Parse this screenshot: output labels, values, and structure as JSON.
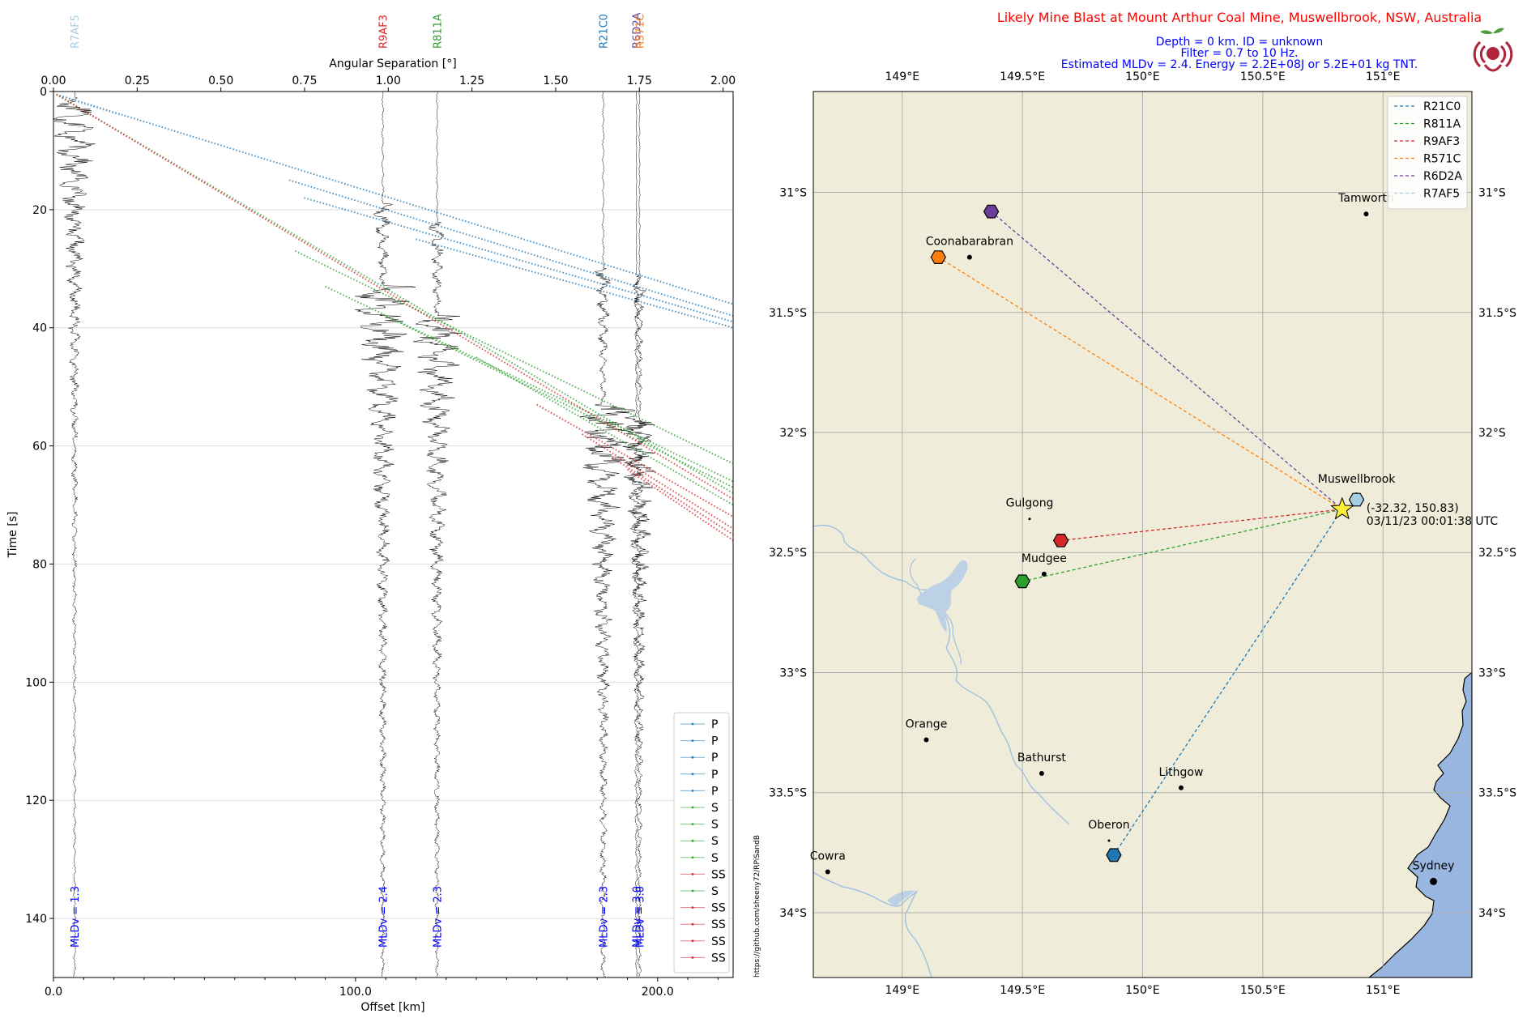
{
  "colors": {
    "r21c0": "#1f77b4",
    "r811a": "#2ca02c",
    "r9af3": "#d62728",
    "r571c": "#ff7f0e",
    "r6d2a": "#6a3d9a",
    "r7af5": "#a6cee3",
    "land": "#efedda",
    "ocean": "#98b6e0",
    "river": "#9fc0e2",
    "star": "#ffee33",
    "title_red": "#ff0000",
    "subtitle_blue": "#0000ff",
    "mldv_blue": "#0000ff",
    "logo_red": "#b0243c",
    "logo_green": "#4e9a3a"
  },
  "icons": {
    "logo": "raspberry-shake-logo-icon",
    "star": "event-star-icon",
    "station": "station-hexagon-icon"
  },
  "seismogram": {
    "chart_data": {
      "type": "line",
      "title": "",
      "xlabel": "Offset [km]",
      "ylabel": "Time [s]",
      "top_xlabel": "Angular Separation [°]",
      "xlim": [
        0,
        225
      ],
      "ylim": [
        150,
        0
      ],
      "top_xlim": [
        0,
        2.03
      ],
      "x_ticks": [
        0.0,
        100.0,
        200.0
      ],
      "x_tick_labels": [
        "0.0",
        "100.0",
        "200.0"
      ],
      "y_ticks": [
        0,
        20,
        40,
        60,
        80,
        100,
        120,
        140
      ],
      "y_tick_labels": [
        "0",
        "20",
        "40",
        "60",
        "80",
        "100",
        "120",
        "140"
      ],
      "top_ticks": [
        0.0,
        0.25,
        0.5,
        0.75,
        1.0,
        1.25,
        1.5,
        1.75,
        2.0
      ],
      "top_tick_labels": [
        "0.00",
        "0.25",
        "0.50",
        "0.75",
        "1.00",
        "1.25",
        "1.50",
        "1.75",
        "2.00"
      ],
      "grid": "horizontal",
      "traces": [
        {
          "station": "R7AF5",
          "offset_km": 7,
          "amp": 0.7,
          "p_arrival_s": 1,
          "s_arrival_s": 2,
          "mldv_label": "MLDv = 1.3",
          "color_key": "r7af5"
        },
        {
          "station": "R9AF3",
          "offset_km": 109,
          "amp": 1.0,
          "p_arrival_s": 19,
          "s_arrival_s": 33,
          "mldv_label": "MLDv = 2.4",
          "color_key": "r9af3"
        },
        {
          "station": "R811A",
          "offset_km": 127,
          "amp": 0.9,
          "p_arrival_s": 22,
          "s_arrival_s": 38,
          "mldv_label": "MLDv = 2.3",
          "color_key": "r811a"
        },
        {
          "station": "R21C0",
          "offset_km": 182,
          "amp": 1.0,
          "p_arrival_s": 30,
          "s_arrival_s": 53,
          "mldv_label": "MLDv = 2.3",
          "color_key": "r21c0"
        },
        {
          "station": "R6D2A",
          "offset_km": 193,
          "amp": 0.4,
          "p_arrival_s": 31,
          "s_arrival_s": 55,
          "mldv_label": "MLDv = 3.0",
          "color_key": "r6d2a"
        },
        {
          "station": "R571C",
          "offset_km": 194,
          "amp": 0.7,
          "p_arrival_s": 32,
          "s_arrival_s": 56,
          "mldv_label": "MLDv = 3.0",
          "color_key": "r571c"
        }
      ],
      "phase_curves": [
        {
          "phase": "P",
          "color_key": "r7af5",
          "points": [
            [
              3,
              1
            ],
            [
              22,
              4
            ]
          ]
        },
        {
          "phase": "P",
          "color_key": "r21c0",
          "points": [
            [
              1,
              0.5
            ],
            [
              225,
              36
            ]
          ]
        },
        {
          "phase": "P",
          "color_key": "r21c0",
          "points": [
            [
              78,
              15
            ],
            [
              225,
              38
            ]
          ]
        },
        {
          "phase": "P",
          "color_key": "r21c0",
          "points": [
            [
              83,
              18
            ],
            [
              225,
              39
            ]
          ]
        },
        {
          "phase": "P",
          "color_key": "r21c0",
          "points": [
            [
              120,
              25
            ],
            [
              225,
              40
            ]
          ]
        },
        {
          "phase": "S",
          "color_key": "r811a",
          "points": [
            [
              80,
              27
            ],
            [
              225,
              63
            ]
          ]
        },
        {
          "phase": "S",
          "color_key": "r811a",
          "points": [
            [
              90,
              33
            ],
            [
              225,
              66
            ]
          ]
        },
        {
          "phase": "S",
          "color_key": "r811a",
          "points": [
            [
              110,
              38
            ],
            [
              225,
              67
            ]
          ]
        },
        {
          "phase": "S",
          "color_key": "r811a",
          "points": [
            [
              1,
              0.5
            ],
            [
              225,
              68
            ]
          ]
        },
        {
          "phase": "SS",
          "color_key": "r9af3",
          "points": [
            [
              1,
              0.5
            ],
            [
              225,
              69
            ]
          ]
        },
        {
          "phase": "S",
          "color_key": "r811a",
          "points": [
            [
              140,
              45
            ],
            [
              225,
              70
            ]
          ]
        },
        {
          "phase": "SS",
          "color_key": "r9af3",
          "points": [
            [
              160,
              53
            ],
            [
              225,
              72
            ]
          ]
        },
        {
          "phase": "SS",
          "color_key": "r9af3",
          "points": [
            [
              175,
              58
            ],
            [
              225,
              74
            ]
          ]
        },
        {
          "phase": "SS",
          "color_key": "r9af3",
          "points": [
            [
              185,
              62
            ],
            [
              225,
              75
            ]
          ]
        },
        {
          "phase": "SS",
          "color_key": "r9af3",
          "points": [
            [
              190,
              64
            ],
            [
              225,
              76
            ]
          ]
        }
      ],
      "legend": {
        "position": "lower-right",
        "entries": [
          {
            "label": "P",
            "color_key": "r21c0"
          },
          {
            "label": "P",
            "color_key": "r21c0"
          },
          {
            "label": "P",
            "color_key": "r21c0"
          },
          {
            "label": "P",
            "color_key": "r21c0"
          },
          {
            "label": "P",
            "color_key": "r21c0"
          },
          {
            "label": "S",
            "color_key": "r811a"
          },
          {
            "label": "S",
            "color_key": "r811a"
          },
          {
            "label": "S",
            "color_key": "r811a"
          },
          {
            "label": "S",
            "color_key": "r811a"
          },
          {
            "label": "SS",
            "color_key": "r9af3"
          },
          {
            "label": "S",
            "color_key": "r811a"
          },
          {
            "label": "SS",
            "color_key": "r9af3"
          },
          {
            "label": "SS",
            "color_key": "r9af3"
          },
          {
            "label": "SS",
            "color_key": "r9af3"
          },
          {
            "label": "SS",
            "color_key": "r9af3"
          }
        ]
      }
    }
  },
  "map": {
    "title": "Likely Mine Blast at Mount Arthur Coal Mine, Muswellbrook, NSW, Australia",
    "subtitle_lines": [
      "Depth = 0 km. ID = unknown",
      "Filter = 0.7 to 10 Hz.",
      "Estimated MLDv = 2.4. Energy = 2.2E+08J or 5.2E+01 kg TNT."
    ],
    "credit": "https://github.com/sheeny72/RPiSandB",
    "chart_data": {
      "type": "scatter",
      "lon_range": [
        148.63,
        151.37
      ],
      "lat_range": [
        -34.27,
        -30.58
      ],
      "lon_ticks": [
        149.0,
        149.5,
        150.0,
        150.5,
        151.0
      ],
      "lon_tick_labels": [
        "149°E",
        "149.5°E",
        "150°E",
        "150.5°E",
        "151°E"
      ],
      "lat_ticks": [
        -31.0,
        -31.5,
        -32.0,
        -32.5,
        -33.0,
        -33.5,
        -34.0
      ],
      "lat_tick_labels": [
        "31°S",
        "31.5°S",
        "32°S",
        "32.5°S",
        "33°S",
        "33.5°S",
        "34°S"
      ],
      "epicenter": {
        "lat": -32.32,
        "lon": 150.83,
        "label_coords": "(-32.32, 150.83)",
        "label_time": "03/11/23 00:01:38 UTC"
      },
      "stations": [
        {
          "name": "R21C0",
          "lat": -33.76,
          "lon": 149.88,
          "color_key": "r21c0"
        },
        {
          "name": "R811A",
          "lat": -32.62,
          "lon": 149.5,
          "color_key": "r811a"
        },
        {
          "name": "R9AF3",
          "lat": -32.45,
          "lon": 149.66,
          "color_key": "r9af3"
        },
        {
          "name": "R571C",
          "lat": -31.27,
          "lon": 149.15,
          "color_key": "r571c"
        },
        {
          "name": "R6D2A",
          "lat": -31.08,
          "lon": 149.37,
          "color_key": "r6d2a"
        },
        {
          "name": "R7AF5",
          "lat": -32.28,
          "lon": 150.89,
          "color_key": "r7af5"
        }
      ],
      "cities": [
        {
          "name": "Tamworth",
          "lat": -31.09,
          "lon": 150.93,
          "dot": 3
        },
        {
          "name": "Coonabarabran",
          "lat": -31.27,
          "lon": 149.28,
          "dot": 3
        },
        {
          "name": "Muswellbrook",
          "lat": -32.26,
          "lon": 150.89,
          "dot": 3
        },
        {
          "name": "Gulgong",
          "lat": -32.36,
          "lon": 149.53,
          "dot": 1.5
        },
        {
          "name": "Mudgee",
          "lat": -32.59,
          "lon": 149.59,
          "dot": 3
        },
        {
          "name": "Orange",
          "lat": -33.28,
          "lon": 149.1,
          "dot": 3
        },
        {
          "name": "Bathurst",
          "lat": -33.42,
          "lon": 149.58,
          "dot": 3
        },
        {
          "name": "Lithgow",
          "lat": -33.48,
          "lon": 150.16,
          "dot": 3
        },
        {
          "name": "Oberon",
          "lat": -33.7,
          "lon": 149.86,
          "dot": 1.5
        },
        {
          "name": "Cowra",
          "lat": -33.83,
          "lon": 148.69,
          "dot": 3
        },
        {
          "name": "Sydney",
          "lat": -33.87,
          "lon": 151.21,
          "dot": 4.5
        }
      ],
      "legend": {
        "position": "top-right",
        "entries": [
          {
            "label": "R21C0",
            "color_key": "r21c0"
          },
          {
            "label": "R811A",
            "color_key": "r811a"
          },
          {
            "label": "R9AF3",
            "color_key": "r9af3"
          },
          {
            "label": "R571C",
            "color_key": "r571c"
          },
          {
            "label": "R6D2A",
            "color_key": "r6d2a"
          },
          {
            "label": "R7AF5",
            "color_key": "r7af5"
          }
        ]
      }
    }
  }
}
